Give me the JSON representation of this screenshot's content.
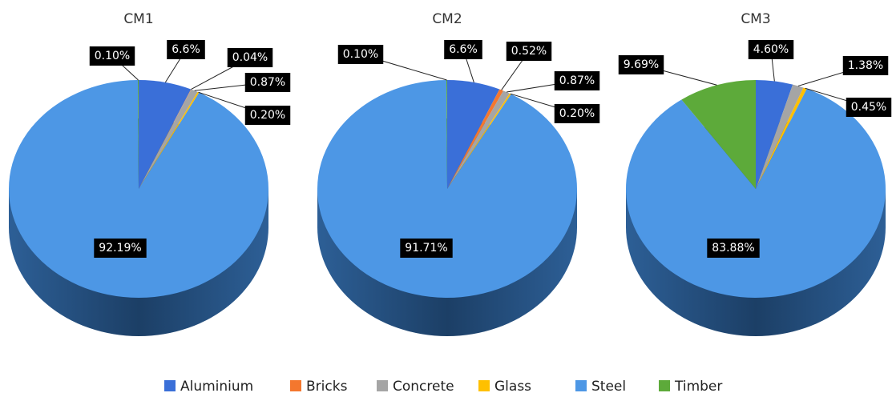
{
  "chart_data": [
    {
      "type": "pie",
      "title": "CM1",
      "categories": [
        "Aluminium",
        "Bricks",
        "Concrete",
        "Glass",
        "Steel",
        "Timber"
      ],
      "colors": [
        "#3a6fd8",
        "#f4772e",
        "#a5a5a5",
        "#ffc000",
        "#4d97e5",
        "#5daa3a"
      ],
      "values": [
        6.6,
        0.04,
        0.87,
        0.2,
        92.19,
        0.1
      ],
      "value_labels": [
        "6.6%",
        "0.04%",
        "0.87%",
        "0.20%",
        "92.19%",
        "0.10%"
      ],
      "legend": "bottom"
    },
    {
      "type": "pie",
      "title": "CM2",
      "categories": [
        "Aluminium",
        "Bricks",
        "Concrete",
        "Glass",
        "Steel",
        "Timber"
      ],
      "colors": [
        "#3a6fd8",
        "#f4772e",
        "#a5a5a5",
        "#ffc000",
        "#4d97e5",
        "#5daa3a"
      ],
      "values": [
        6.6,
        0.52,
        0.87,
        0.2,
        91.71,
        0.1
      ],
      "value_labels": [
        "6.6%",
        "0.52%",
        "0.87%",
        "0.20%",
        "91.71%",
        "0.10%"
      ]
    },
    {
      "type": "pie",
      "title": "CM3",
      "categories": [
        "Aluminium",
        "Bricks",
        "Concrete",
        "Glass",
        "Steel",
        "Timber"
      ],
      "colors": [
        "#3a6fd8",
        "#f4772e",
        "#a5a5a5",
        "#ffc000",
        "#4d97e5",
        "#5daa3a"
      ],
      "values": [
        4.6,
        null,
        1.38,
        0.45,
        83.88,
        9.69
      ],
      "value_labels": [
        "4.60%",
        null,
        "1.38%",
        "0.45%",
        "83.88%",
        "9.69%"
      ]
    }
  ]
}
